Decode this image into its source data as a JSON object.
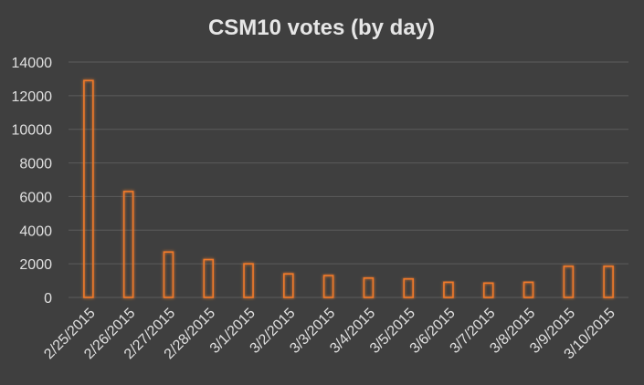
{
  "chart_data": {
    "type": "bar",
    "title": "CSM10 votes (by day)",
    "xlabel": "",
    "ylabel": "",
    "categories": [
      "2/25/2015",
      "2/26/2015",
      "2/27/2015",
      "2/28/2015",
      "3/1/2015",
      "3/2/2015",
      "3/3/2015",
      "3/4/2015",
      "3/5/2015",
      "3/6/2015",
      "3/7/2015",
      "3/8/2015",
      "3/9/2015",
      "3/10/2015"
    ],
    "values": [
      12900,
      6300,
      2700,
      2250,
      2000,
      1400,
      1300,
      1150,
      1100,
      900,
      850,
      900,
      1850,
      1850
    ],
    "ylim": [
      0,
      14000
    ],
    "yticks": [
      0,
      2000,
      4000,
      6000,
      8000,
      10000,
      12000,
      14000
    ],
    "grid": true,
    "legend": "none",
    "colors": {
      "background": "#3f3f3f",
      "bar_stroke": "#f07a2a",
      "bar_glow": "#c8551a"
    }
  }
}
